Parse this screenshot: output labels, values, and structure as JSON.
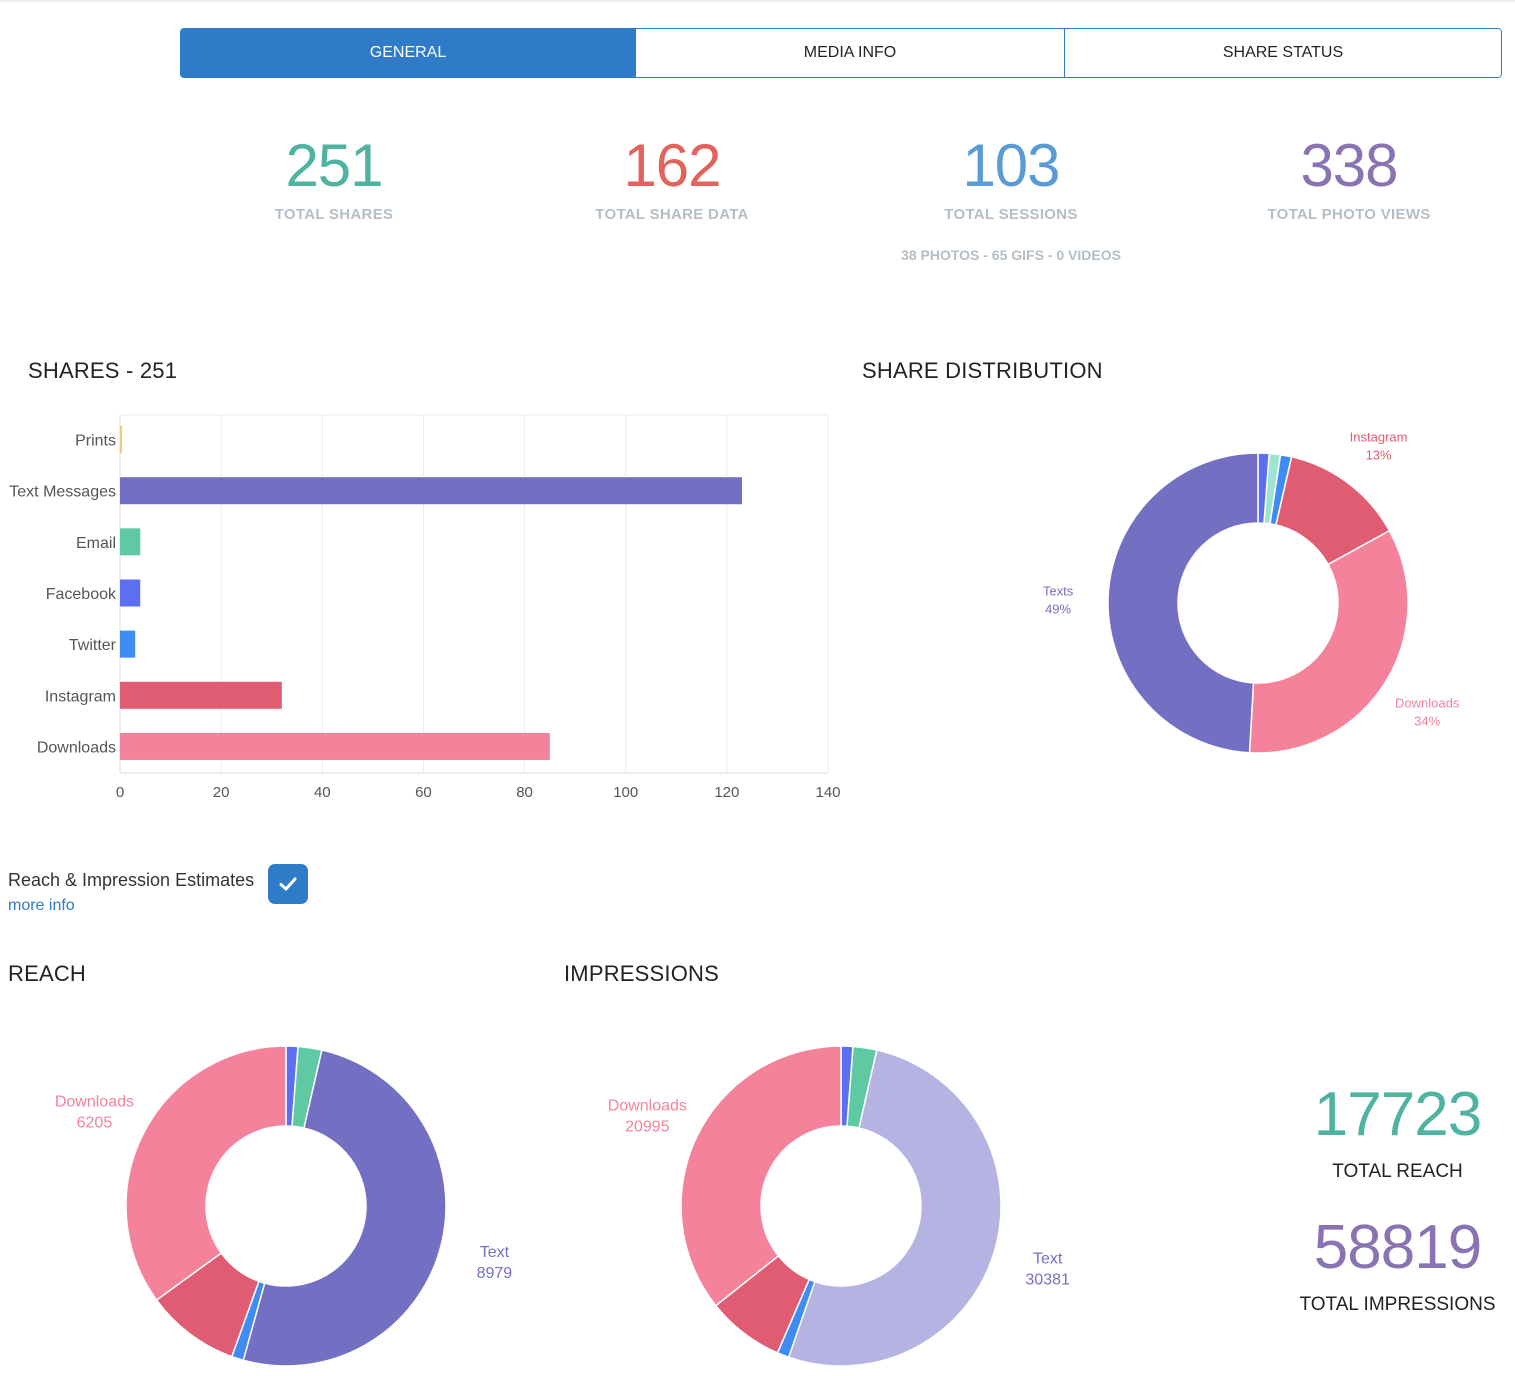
{
  "tabs": [
    {
      "label": "GENERAL",
      "active": true
    },
    {
      "label": "MEDIA INFO",
      "active": false
    },
    {
      "label": "SHARE STATUS",
      "active": false
    }
  ],
  "stats": [
    {
      "value": "251",
      "label": "TOTAL SHARES",
      "color": "#4fb3a1"
    },
    {
      "value": "162",
      "label": "TOTAL SHARE DATA",
      "color": "#e2625c"
    },
    {
      "value": "103",
      "label": "TOTAL SESSIONS",
      "color": "#5b9bd5",
      "sub": "38 PHOTOS - 65 GIFS - 0 VIDEOS"
    },
    {
      "value": "338",
      "label": "TOTAL PHOTO VIEWS",
      "color": "#8a73b3"
    }
  ],
  "colors": {
    "prints": "#f3c870",
    "texts": "#7370c4",
    "texts_light": "#b5b3e2",
    "email": "#5ec9a3",
    "facebook": "#5b6ff2",
    "twitter": "#3f8cf5",
    "instagram": "#e05c72",
    "downloads": "#f4829b",
    "mint": "#9ee4d0",
    "accent": "#2f7bc8"
  },
  "shares_title": "SHARES - 251",
  "distribution_title": "SHARE DISTRIBUTION",
  "reach_toggle": {
    "label": "Reach & Impression Estimates",
    "checked": true,
    "more_info": "more info"
  },
  "reach_title": "REACH",
  "impressions_title": "IMPRESSIONS",
  "totals": {
    "reach": {
      "value": "17723",
      "label": "TOTAL REACH",
      "color": "#4fb3a1"
    },
    "impressions": {
      "value": "58819",
      "label": "TOTAL IMPRESSIONS",
      "color": "#8a73b3"
    }
  },
  "chart_data": [
    {
      "type": "bar",
      "orientation": "horizontal",
      "categories": [
        "Prints",
        "Text Messages",
        "Email",
        "Facebook",
        "Twitter",
        "Instagram",
        "Downloads"
      ],
      "values": [
        0,
        123,
        4,
        4,
        3,
        32,
        85
      ],
      "colors": [
        "#f3c870",
        "#7370c4",
        "#5ec9a3",
        "#5b6ff2",
        "#3f8cf5",
        "#e05c72",
        "#f4829b"
      ],
      "xlim": [
        0,
        140
      ],
      "xticks": [
        0,
        20,
        40,
        60,
        80,
        100,
        120,
        140
      ],
      "grid": true
    },
    {
      "type": "pie",
      "donut": true,
      "slices": [
        {
          "value": 1.2,
          "color": "#5b6ff2"
        },
        {
          "value": 1.2,
          "color": "#9ee4d0"
        },
        {
          "value": 1.2,
          "color": "#3f8cf5"
        },
        {
          "value": 13.4,
          "color": "#e05c72",
          "label": "Instagram",
          "pct": "13%"
        },
        {
          "value": 33.9,
          "color": "#f4829b",
          "label": "Downloads",
          "pct": "34%"
        },
        {
          "value": 49.1,
          "color": "#7370c4",
          "label": "Texts",
          "pct": "49%"
        }
      ]
    },
    {
      "type": "pie",
      "donut": true,
      "slices": [
        {
          "value": 1.2,
          "color": "#5b6ff2"
        },
        {
          "value": 2.4,
          "color": "#5ec9a3"
        },
        {
          "value": 50.7,
          "color": "#7370c4",
          "label": "Text",
          "val": "8979"
        },
        {
          "value": 1.2,
          "color": "#3f8cf5"
        },
        {
          "value": 9.5,
          "color": "#e05c72"
        },
        {
          "value": 35.0,
          "color": "#f4829b",
          "label": "Downloads",
          "val": "6205"
        }
      ]
    },
    {
      "type": "pie",
      "donut": true,
      "slices": [
        {
          "value": 1.2,
          "color": "#5b6ff2"
        },
        {
          "value": 2.4,
          "color": "#5ec9a3"
        },
        {
          "value": 51.7,
          "color": "#b5b3e2",
          "label": "Text",
          "val": "30381"
        },
        {
          "value": 1.2,
          "color": "#3f8cf5"
        },
        {
          "value": 7.8,
          "color": "#e05c72"
        },
        {
          "value": 35.7,
          "color": "#f4829b",
          "label": "Downloads",
          "val": "20995"
        }
      ]
    }
  ]
}
